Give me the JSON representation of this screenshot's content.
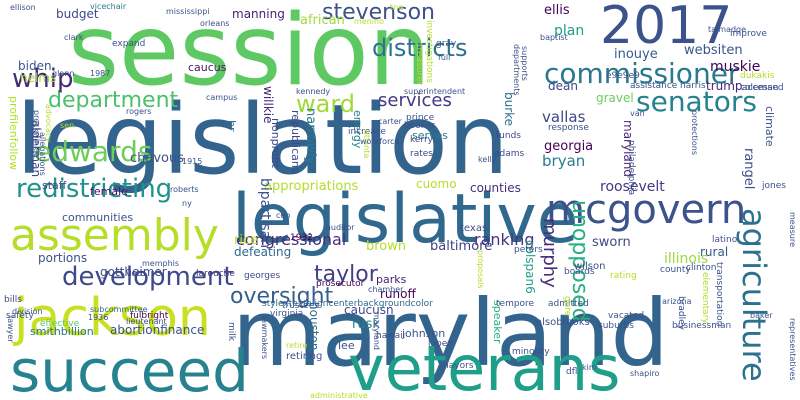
{
  "words": [
    {
      "text": "legislation",
      "color": "#32648e"
    },
    {
      "text": "maryland",
      "color": "#32648e"
    },
    {
      "text": "session",
      "color": "#5ec962"
    },
    {
      "text": "legislative",
      "color": "#31688e"
    },
    {
      "text": "veterans",
      "color": "#1f9e89"
    },
    {
      "text": "succeed",
      "color": "#26828e"
    },
    {
      "text": "2017",
      "color": "#3b528b"
    },
    {
      "text": "jackson",
      "color": "#c8e020"
    },
    {
      "text": "assembly",
      "color": "#b5de2b"
    },
    {
      "text": "commissioner",
      "color": "#2a788e"
    },
    {
      "text": "mcgovern",
      "color": "#3b528b"
    },
    {
      "text": "senators",
      "color": "#26828e"
    },
    {
      "text": "agriculture",
      "color": "#2c718e"
    },
    {
      "text": "department",
      "color": "#4ac16d"
    },
    {
      "text": "development",
      "color": "#3e4989"
    },
    {
      "text": "redistricting",
      "color": "#21918c"
    },
    {
      "text": "edwards",
      "color": "#6ece58"
    },
    {
      "text": "stevenson",
      "color": "#3b528b"
    },
    {
      "text": "districts",
      "color": "#2c728e"
    },
    {
      "text": "whip",
      "color": "#482878"
    },
    {
      "text": "ward",
      "color": "#9fda3a"
    },
    {
      "text": "services",
      "color": "#453781"
    },
    {
      "text": "unopposed",
      "color": "#29af7f"
    },
    {
      "text": "oversight",
      "color": "#355f8d"
    },
    {
      "text": "taylor",
      "color": "#433e85"
    },
    {
      "text": "murphy",
      "color": "#472d7b"
    },
    {
      "text": "congressional",
      "color": "#472d7b"
    },
    {
      "text": "ranking",
      "color": "#46337e"
    },
    {
      "text": "budget",
      "color": "#3e4989"
    },
    {
      "text": "manning",
      "color": "#482173"
    },
    {
      "text": "african",
      "color": "#a2da37"
    },
    {
      "text": "ellis",
      "color": "#440154"
    },
    {
      "text": "muskie",
      "color": "#440154"
    },
    {
      "text": "trump",
      "color": "#482475"
    },
    {
      "text": "websiten",
      "color": "#39568c"
    },
    {
      "text": "dean",
      "color": "#404688"
    },
    {
      "text": "plan",
      "color": "#1f9e89"
    },
    {
      "text": "inouye",
      "color": "#365c8d"
    },
    {
      "text": "vallas",
      "color": "#404688"
    },
    {
      "text": "gravel",
      "color": "#6ccd5a"
    },
    {
      "text": "georgia",
      "color": "#440154"
    },
    {
      "text": "bryan",
      "color": "#287c8e"
    },
    {
      "text": "rangel",
      "color": "#3d4e8a"
    },
    {
      "text": "caucus",
      "color": "#481769"
    },
    {
      "text": "biden",
      "color": "#3b528b"
    },
    {
      "text": "helms",
      "color": "#a0da39"
    },
    {
      "text": "alderman",
      "color": "#404688"
    },
    {
      "text": "chavous",
      "color": "#3b528b"
    },
    {
      "text": "staff",
      "color": "#3e4989"
    },
    {
      "text": "female",
      "color": "#471063"
    },
    {
      "text": "rice",
      "color": "#c2df23"
    },
    {
      "text": "appropriations",
      "color": "#b2dd2d"
    },
    {
      "text": "cuomo",
      "color": "#b5de2b"
    },
    {
      "text": "counties",
      "color": "#472c7a"
    },
    {
      "text": "roosevelt",
      "color": "#453781"
    },
    {
      "text": "brown",
      "color": "#b5de2b"
    },
    {
      "text": "baltimore",
      "color": "#423f85"
    },
    {
      "text": "sworn",
      "color": "#3f4889"
    },
    {
      "text": "rural",
      "color": "#375a8c"
    },
    {
      "text": "illinois",
      "color": "#9bd93c"
    },
    {
      "text": "defeating",
      "color": "#31688e"
    },
    {
      "text": "portions",
      "color": "#3b528b"
    },
    {
      "text": "gottheimer",
      "color": "#3e4a89"
    },
    {
      "text": "smithbillion",
      "color": "#2a778e"
    },
    {
      "text": "abortionfinance",
      "color": "#3b528b"
    },
    {
      "text": "parks",
      "color": "#482173"
    },
    {
      "text": "runoff",
      "color": "#440154"
    },
    {
      "text": "caucusn",
      "color": "#3f4889"
    },
    {
      "text": "rusk",
      "color": "#26828e"
    },
    {
      "text": "lee",
      "color": "#3b528b"
    },
    {
      "text": "speaker",
      "color": "#29af7f"
    },
    {
      "text": "houston",
      "color": "#2c718e"
    },
    {
      "text": "johnson",
      "color": "#39568c"
    },
    {
      "text": "colspan6",
      "color": "#1f9e89"
    },
    {
      "text": "retiring",
      "color": "#3b528b"
    },
    {
      "text": "communities",
      "color": "#3b528b"
    },
    {
      "text": "stylextextaligncenterbackgroundcolor",
      "color": "#31688e"
    },
    {
      "text": "republicans",
      "color": "#3e4989"
    },
    {
      "text": "nonprofit",
      "color": "#3e4989"
    },
    {
      "text": "bipartisan",
      "color": "#3b528b"
    },
    {
      "text": "willkie",
      "color": "#482878"
    },
    {
      "text": "narrowly",
      "color": "#2a788e"
    },
    {
      "text": "energy",
      "color": "#26828e"
    },
    {
      "text": "climate",
      "color": "#3b528b"
    },
    {
      "text": "maryland",
      "color": "#482878"
    },
    {
      "text": "burke",
      "color": "#2c728e"
    },
    {
      "text": "serves",
      "color": "#2a788e"
    },
    {
      "text": "hr",
      "color": "#2c728e"
    },
    {
      "text": "profilenfollow",
      "color": "#b5de2b"
    },
    {
      "text": "prosecutor",
      "color": "#440154"
    },
    {
      "text": "vicechair",
      "color": "#2a788e"
    },
    {
      "text": "fulbright",
      "color": "#440154"
    },
    {
      "text": "division",
      "color": "#3b528b"
    },
    {
      "text": "subcommittee",
      "color": "#31688e"
    },
    {
      "text": "bills",
      "color": "#3e4989"
    },
    {
      "text": "safety",
      "color": "#3b528b"
    },
    {
      "text": "effective",
      "color": "#5ec962"
    },
    {
      "text": "1936",
      "color": "#3b528b"
    },
    {
      "text": "1932",
      "color": "#440154"
    },
    {
      "text": "veto",
      "color": "#3e4989"
    },
    {
      "text": "larouche",
      "color": "#453781"
    },
    {
      "text": "georges",
      "color": "#3e4989"
    },
    {
      "text": "trustees",
      "color": "#3b528b"
    },
    {
      "text": "virginia",
      "color": "#3b528b"
    },
    {
      "text": "lawmakers",
      "color": "#3b528b"
    },
    {
      "text": "mayors",
      "color": "#3b528b"
    },
    {
      "text": "milk",
      "color": "#3b528b"
    },
    {
      "text": "hawaii",
      "color": "#3b528b"
    },
    {
      "text": "lopez",
      "color": "#3b528b"
    },
    {
      "text": "kerry",
      "color": "#3e4989"
    },
    {
      "text": "rates",
      "color": "#3e4989"
    },
    {
      "text": "adams",
      "color": "#3e4989"
    },
    {
      "text": "funds",
      "color": "#3e4989"
    },
    {
      "text": "response",
      "color": "#3b528b"
    },
    {
      "text": "booker",
      "color": "#3b528b"
    },
    {
      "text": "prince",
      "color": "#3b528b"
    },
    {
      "text": "increase",
      "color": "#3b528b"
    },
    {
      "text": "alsobrooks",
      "color": "#3b528b"
    },
    {
      "text": "suburbs",
      "color": "#3b528b"
    },
    {
      "text": "businessman",
      "color": "#3b528b"
    },
    {
      "text": "vacated",
      "color": "#3b528b"
    },
    {
      "text": "minority",
      "color": "#3b528b"
    },
    {
      "text": "admitted",
      "color": "#3b528b"
    },
    {
      "text": "boards",
      "color": "#3b528b"
    },
    {
      "text": "county",
      "color": "#3b528b"
    },
    {
      "text": "clinton",
      "color": "#3b528b"
    },
    {
      "text": "latino",
      "color": "#3b528b"
    },
    {
      "text": "wilson",
      "color": "#3b528b"
    },
    {
      "text": "texas",
      "color": "#3b528b"
    },
    {
      "text": "tempore",
      "color": "#3b528b"
    },
    {
      "text": "peters",
      "color": "#3b528b"
    },
    {
      "text": "coleman",
      "color": "#3b528b"
    },
    {
      "text": "dukakis",
      "color": "#b5de2b"
    },
    {
      "text": "accessed",
      "color": "#3b528b"
    },
    {
      "text": "assistance",
      "color": "#3b528b"
    },
    {
      "text": "harris",
      "color": "#3b528b"
    },
    {
      "text": "improve",
      "color": "#3b528b"
    },
    {
      "text": "e9e9e9",
      "color": "#3b528b"
    },
    {
      "text": "jones",
      "color": "#3b528b"
    },
    {
      "text": "measure",
      "color": "#3b528b"
    },
    {
      "text": "transportation",
      "color": "#3b528b"
    },
    {
      "text": "elementary",
      "color": "#b5de2b"
    },
    {
      "text": "protections",
      "color": "#3b528b"
    },
    {
      "text": "philadelphia",
      "color": "#3b528b"
    },
    {
      "text": "bradley",
      "color": "#3b528b"
    },
    {
      "text": "representatives",
      "color": "#3b528b"
    },
    {
      "text": "departments",
      "color": "#3b528b"
    },
    {
      "text": "supports",
      "color": "#3b528b"
    },
    {
      "text": "treasurer",
      "color": "#b5de2b"
    },
    {
      "text": "investigations",
      "color": "#b5de2b"
    },
    {
      "text": "baptist",
      "color": "#3b528b"
    },
    {
      "text": "gray",
      "color": "#3b528b"
    },
    {
      "text": "full",
      "color": "#3b528b"
    },
    {
      "text": "expand",
      "color": "#3b528b"
    },
    {
      "text": "clark",
      "color": "#3b528b"
    },
    {
      "text": "glenn",
      "color": "#3b528b"
    },
    {
      "text": "rogers",
      "color": "#3b528b"
    },
    {
      "text": "campus",
      "color": "#3b528b"
    },
    {
      "text": "kennedy",
      "color": "#3b528b"
    },
    {
      "text": "allegations",
      "color": "#3b528b"
    },
    {
      "text": "preckwinkle",
      "color": "#3b528b"
    },
    {
      "text": "advocacy",
      "color": "#b5de2b"
    },
    {
      "text": "lawyer",
      "color": "#3b528b"
    },
    {
      "text": "sen",
      "color": "#b5de2b"
    },
    {
      "text": "superintendent",
      "color": "#3b528b"
    },
    {
      "text": "rating",
      "color": "#b5de2b"
    },
    {
      "text": "gore",
      "color": "#b5de2b"
    },
    {
      "text": "proposals",
      "color": "#b5de2b"
    },
    {
      "text": "maryland",
      "color": "#3b528b"
    },
    {
      "text": "atlanta",
      "color": "#b5de2b"
    },
    {
      "text": "retire",
      "color": "#b5de2b"
    },
    {
      "text": "workforce",
      "color": "#3b528b"
    },
    {
      "text": "carter",
      "color": "#3b528b"
    },
    {
      "text": "1915",
      "color": "#3b528b"
    },
    {
      "text": "roberts",
      "color": "#3b528b"
    },
    {
      "text": "memphis",
      "color": "#3b528b"
    },
    {
      "text": "lieutenant",
      "color": "#3b528b"
    },
    {
      "text": "auditor",
      "color": "#3b528b"
    },
    {
      "text": "ceo",
      "color": "#3b528b"
    },
    {
      "text": "chamber",
      "color": "#3b528b"
    },
    {
      "text": "baker",
      "color": "#3b528b"
    },
    {
      "text": "shapiro",
      "color": "#3b528b"
    },
    {
      "text": "administrative",
      "color": "#b5de2b"
    },
    {
      "text": "dfl",
      "color": "#3b528b"
    },
    {
      "text": "arizona",
      "color": "#3b528b"
    },
    {
      "text": "kim",
      "color": "#3b528b"
    },
    {
      "text": "talmadge",
      "color": "#3b528b"
    },
    {
      "text": "orleans",
      "color": "#3b528b"
    },
    {
      "text": "ellison",
      "color": "#3b528b"
    },
    {
      "text": "menino",
      "color": "#b5de2b"
    },
    {
      "text": "mississippi",
      "color": "#3b528b"
    },
    {
      "text": "1987",
      "color": "#3b528b"
    },
    {
      "text": "tne",
      "color": "#b5de2b"
    },
    {
      "text": "kelly",
      "color": "#3b528b"
    },
    {
      "text": "ny",
      "color": "#3b528b"
    },
    {
      "text": "van",
      "color": "#3b528b"
    }
  ]
}
